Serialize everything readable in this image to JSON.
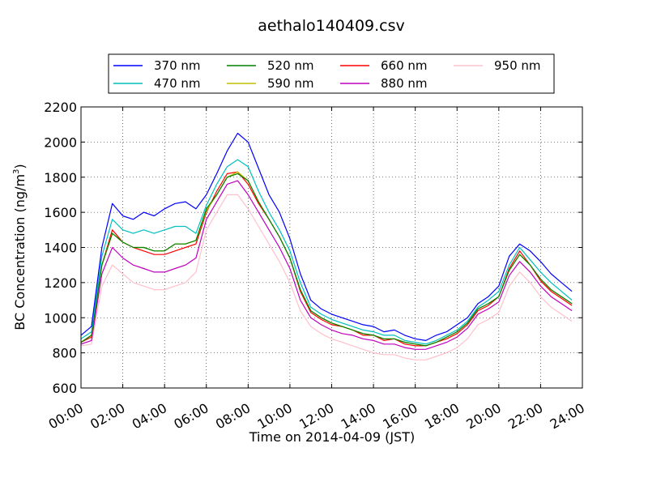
{
  "chart_data": {
    "type": "line",
    "title": "aethalo140409.csv",
    "xlabel": "Time on 2014-04-09 (JST)",
    "ylabel_main": "BC Concentration (ng/m",
    "ylabel_sup": "3",
    "ylabel_close": ")",
    "xlim_hours": [
      0,
      24
    ],
    "ylim": [
      600,
      2200
    ],
    "x_ticks": [
      "00:00",
      "02:00",
      "04:00",
      "06:00",
      "08:00",
      "10:00",
      "12:00",
      "14:00",
      "16:00",
      "18:00",
      "20:00",
      "22:00",
      "24:00"
    ],
    "y_ticks": [
      600,
      800,
      1000,
      1200,
      1400,
      1600,
      1800,
      2000,
      2200
    ],
    "grid": true,
    "legend_position": "top",
    "x_hours": [
      0.0,
      0.5,
      1.0,
      1.5,
      2.0,
      2.5,
      3.0,
      3.5,
      4.0,
      4.5,
      5.0,
      5.5,
      6.0,
      6.5,
      7.0,
      7.5,
      8.0,
      8.5,
      9.0,
      9.5,
      10.0,
      10.5,
      11.0,
      11.5,
      12.0,
      12.5,
      13.0,
      13.5,
      14.0,
      14.5,
      15.0,
      15.5,
      16.0,
      16.5,
      17.0,
      17.5,
      18.0,
      18.5,
      19.0,
      19.5,
      20.0,
      20.5,
      21.0,
      21.5,
      22.0,
      22.5,
      23.0,
      23.5
    ],
    "series": [
      {
        "name": "370 nm",
        "color": "#0000ff",
        "values": [
          900,
          950,
          1400,
          1650,
          1580,
          1560,
          1600,
          1580,
          1620,
          1650,
          1660,
          1620,
          1700,
          1820,
          1950,
          2050,
          2000,
          1850,
          1700,
          1600,
          1450,
          1250,
          1100,
          1050,
          1020,
          1000,
          980,
          960,
          950,
          920,
          930,
          900,
          880,
          870,
          900,
          920,
          960,
          1000,
          1080,
          1120,
          1180,
          1350,
          1420,
          1380,
          1320,
          1250,
          1200,
          1150
        ]
      },
      {
        "name": "470 nm",
        "color": "#00bfbf",
        "values": [
          880,
          920,
          1350,
          1560,
          1500,
          1480,
          1500,
          1480,
          1500,
          1520,
          1520,
          1480,
          1640,
          1760,
          1860,
          1900,
          1860,
          1720,
          1600,
          1500,
          1380,
          1200,
          1060,
          1020,
          990,
          970,
          950,
          930,
          920,
          900,
          900,
          870,
          860,
          850,
          870,
          900,
          930,
          980,
          1060,
          1100,
          1150,
          1300,
          1400,
          1330,
          1260,
          1200,
          1150,
          1100
        ]
      },
      {
        "name": "520 nm",
        "color": "#008000",
        "values": [
          860,
          900,
          1300,
          1480,
          1430,
          1400,
          1400,
          1380,
          1380,
          1420,
          1420,
          1440,
          1620,
          1700,
          1800,
          1820,
          1780,
          1660,
          1560,
          1460,
          1340,
          1160,
          1040,
          1000,
          970,
          950,
          930,
          910,
          900,
          880,
          880,
          860,
          850,
          840,
          860,
          890,
          920,
          970,
          1050,
          1080,
          1120,
          1270,
          1360,
          1300,
          1220,
          1160,
          1120,
          1080
        ]
      },
      {
        "name": "590 nm",
        "color": "#bfbf00",
        "values": [
          860,
          900,
          1300,
          1480,
          1430,
          1400,
          1400,
          1380,
          1380,
          1420,
          1420,
          1440,
          1610,
          1700,
          1800,
          1830,
          1780,
          1660,
          1560,
          1460,
          1340,
          1160,
          1040,
          1000,
          970,
          950,
          930,
          910,
          900,
          880,
          880,
          860,
          850,
          840,
          860,
          890,
          920,
          970,
          1050,
          1080,
          1120,
          1270,
          1360,
          1300,
          1220,
          1160,
          1120,
          1080
        ]
      },
      {
        "name": "660 nm",
        "color": "#ff0000",
        "values": [
          860,
          890,
          1300,
          1500,
          1430,
          1400,
          1380,
          1360,
          1360,
          1380,
          1400,
          1420,
          1600,
          1720,
          1820,
          1830,
          1760,
          1650,
          1560,
          1460,
          1340,
          1150,
          1030,
          990,
          960,
          950,
          930,
          900,
          900,
          870,
          880,
          850,
          840,
          840,
          860,
          880,
          910,
          960,
          1040,
          1070,
          1120,
          1280,
          1380,
          1300,
          1210,
          1150,
          1110,
          1070
        ]
      },
      {
        "name": "880 nm",
        "color": "#bf00bf",
        "values": [
          850,
          870,
          1250,
          1400,
          1340,
          1300,
          1280,
          1260,
          1260,
          1280,
          1300,
          1340,
          1560,
          1660,
          1760,
          1780,
          1700,
          1600,
          1500,
          1400,
          1280,
          1100,
          1000,
          960,
          930,
          910,
          900,
          880,
          870,
          850,
          850,
          830,
          820,
          820,
          840,
          860,
          890,
          940,
          1020,
          1050,
          1090,
          1240,
          1320,
          1260,
          1180,
          1120,
          1080,
          1040
        ]
      },
      {
        "name": "950 nm",
        "color": "#ffc0cb",
        "values": [
          840,
          850,
          1180,
          1300,
          1250,
          1200,
          1180,
          1160,
          1160,
          1180,
          1200,
          1260,
          1500,
          1600,
          1700,
          1700,
          1620,
          1520,
          1420,
          1320,
          1200,
          1040,
          950,
          910,
          880,
          860,
          840,
          820,
          800,
          790,
          790,
          770,
          760,
          760,
          780,
          800,
          830,
          880,
          960,
          990,
          1030,
          1180,
          1260,
          1200,
          1120,
          1060,
          1020,
          980
        ]
      }
    ]
  }
}
